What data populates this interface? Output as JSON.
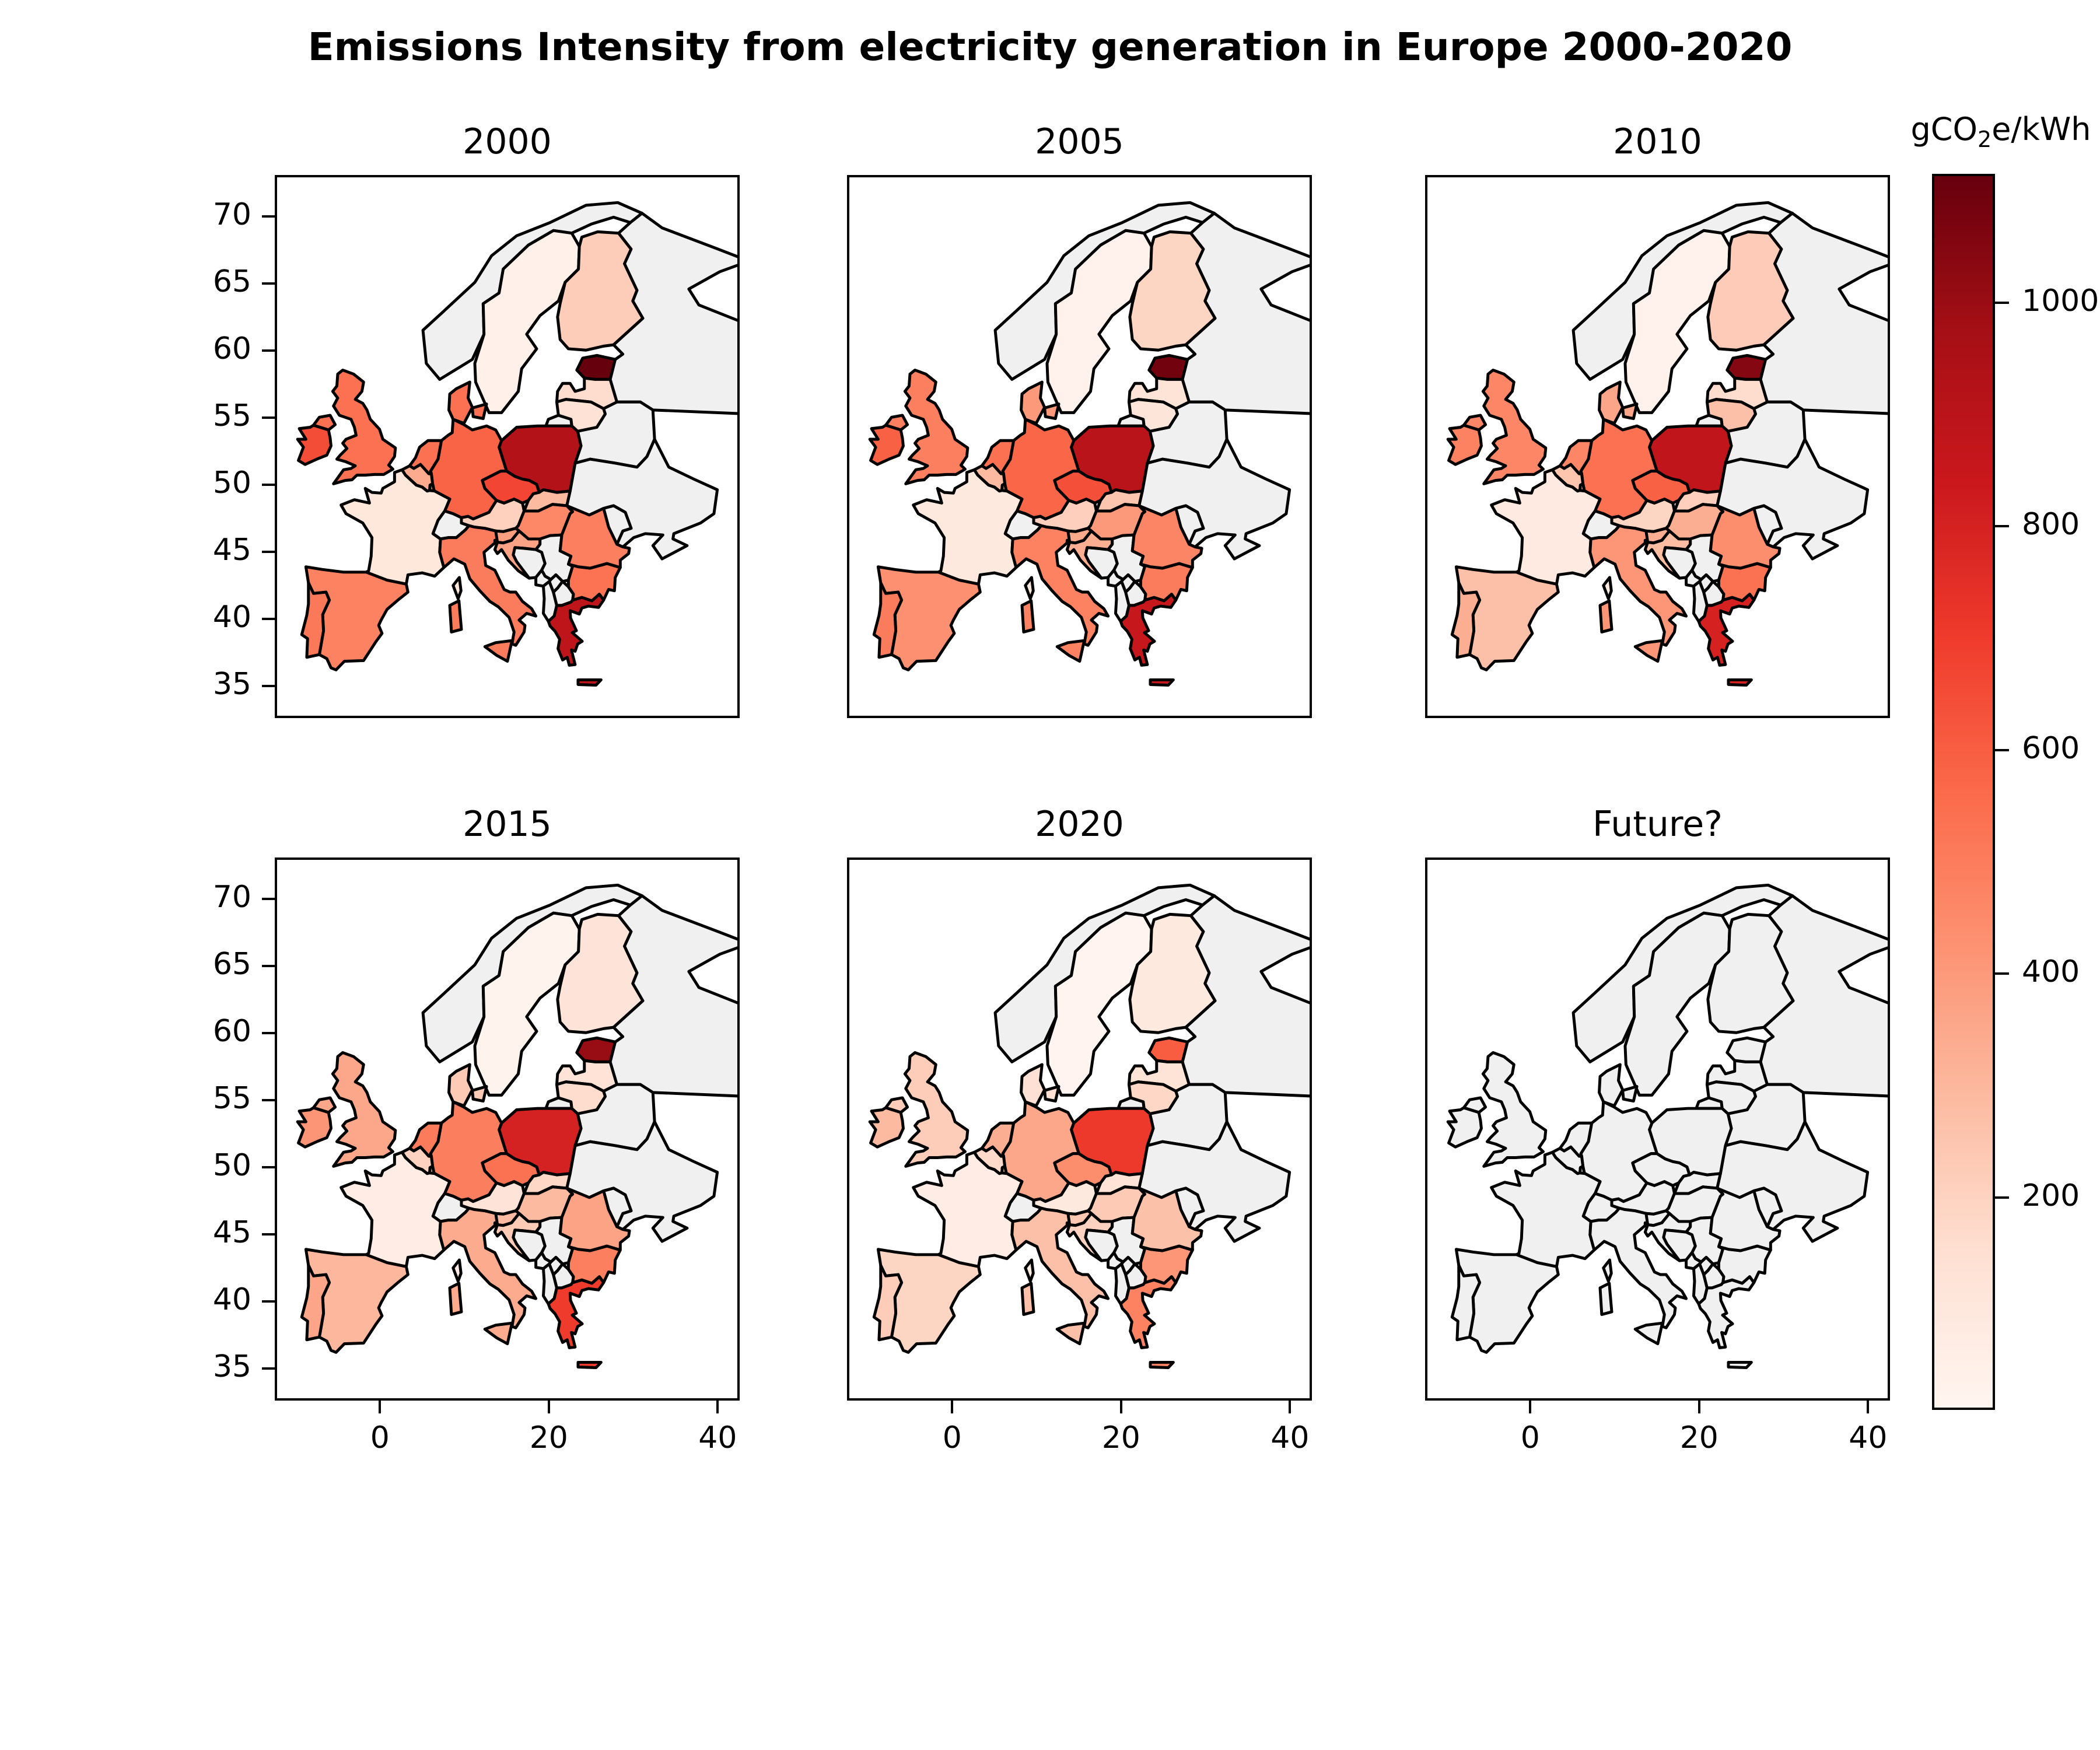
{
  "figure": {
    "title": "Emissions Intensity from electricity generation in Europe 2000-2020",
    "background": "#ffffff"
  },
  "axes": {
    "x_ticks": [
      0,
      20,
      40
    ],
    "y_ticks": [
      35,
      40,
      45,
      50,
      55,
      60,
      65,
      70
    ],
    "x_range": [
      -12.45,
      42.6
    ],
    "y_range": [
      32.6,
      73.1
    ]
  },
  "colorbar": {
    "label": "gCO2e/kWh",
    "label_prefix": "gCO",
    "label_sub": "2",
    "label_suffix": "e/kWh",
    "ticks": [
      200,
      400,
      600,
      800,
      1000
    ]
  },
  "chart_data": {
    "type": "choropleth",
    "title": "Emissions Intensity from electricity generation in Europe 2000-2020",
    "unit": "gCO2e/kWh",
    "colormap": "Reds",
    "colormap_anchors": [
      "#fff5f0",
      "#fee0d2",
      "#fcbba1",
      "#fc9272",
      "#fb6a4a",
      "#ef3b2c",
      "#cb181d",
      "#a50f15",
      "#67000d"
    ],
    "no_data_color": "#f0f0f0",
    "border_color": "#000000",
    "vmin": 10,
    "vmax": 1115,
    "years": [
      "2000",
      "2005",
      "2010",
      "2015",
      "2020"
    ],
    "panels": [
      {
        "label": "2000",
        "year": "2000"
      },
      {
        "label": "2005",
        "year": "2005"
      },
      {
        "label": "2010",
        "year": "2010"
      },
      {
        "label": "2015",
        "year": "2015"
      },
      {
        "label": "2020",
        "year": "2020"
      },
      {
        "label": "Future?",
        "year": null
      }
    ],
    "no_data_countries": [
      "Norway",
      "Switzerland",
      "Russia",
      "Belarus",
      "Ukraine",
      "Moldova",
      "Bosnia and Herzegovina",
      "Serbia",
      "Montenegro",
      "Kosovo",
      "Albania",
      "North Macedonia"
    ],
    "values": {
      "Estonia": {
        "2000": 1115,
        "2005": 1090,
        "2010": 1050,
        "2015": 1005,
        "2020": 600
      },
      "Poland": {
        "2000": 930,
        "2005": 905,
        "2010": 880,
        "2015": 805,
        "2020": 710
      },
      "Greece": {
        "2000": 890,
        "2005": 860,
        "2010": 800,
        "2015": 700,
        "2020": 480
      },
      "Czechia": {
        "2000": 670,
        "2005": 640,
        "2010": 590,
        "2015": 535,
        "2020": 440
      },
      "Ireland": {
        "2000": 650,
        "2005": 590,
        "2010": 480,
        "2015": 415,
        "2020": 290
      },
      "Germany": {
        "2000": 580,
        "2005": 570,
        "2010": 540,
        "2015": 495,
        "2020": 355
      },
      "Netherlands": {
        "2000": 540,
        "2005": 540,
        "2010": 465,
        "2015": 505,
        "2020": 330
      },
      "Denmark": {
        "2000": 540,
        "2005": 400,
        "2010": 360,
        "2015": 230,
        "2020": 140
      },
      "United Kingdom": {
        "2000": 540,
        "2005": 490,
        "2010": 465,
        "2015": 355,
        "2020": 220
      },
      "Bulgaria": {
        "2000": 530,
        "2005": 500,
        "2010": 535,
        "2015": 490,
        "2020": 410
      },
      "Portugal": {
        "2000": 510,
        "2005": 500,
        "2010": 330,
        "2015": 360,
        "2020": 220
      },
      "Italy": {
        "2000": 500,
        "2005": 480,
        "2010": 410,
        "2015": 340,
        "2020": 270
      },
      "Romania": {
        "2000": 490,
        "2005": 470,
        "2010": 440,
        "2015": 370,
        "2020": 265
      },
      "Spain": {
        "2000": 480,
        "2005": 430,
        "2010": 270,
        "2015": 300,
        "2020": 190
      },
      "Hungary": {
        "2000": 460,
        "2005": 400,
        "2010": 330,
        "2015": 290,
        "2020": 230
      },
      "Luxembourg": {
        "2000": 400,
        "2005": 380,
        "2010": 350,
        "2015": 220,
        "2020": 150
      },
      "Slovenia": {
        "2000": 380,
        "2005": 350,
        "2010": 330,
        "2015": 290,
        "2020": 240
      },
      "Croatia": {
        "2000": 370,
        "2005": 330,
        "2010": 280,
        "2015": 230,
        "2020": 200
      },
      "Belgium": {
        "2000": 340,
        "2005": 290,
        "2010": 250,
        "2015": 200,
        "2020": 170
      },
      "Slovakia": {
        "2000": 290,
        "2005": 250,
        "2010": 210,
        "2015": 180,
        "2020": 130
      },
      "Finland": {
        "2000": 220,
        "2005": 190,
        "2010": 225,
        "2015": 120,
        "2020": 90
      },
      "Austria": {
        "2000": 205,
        "2005": 210,
        "2010": 190,
        "2015": 120,
        "2020": 90
      },
      "Latvia": {
        "2000": 160,
        "2005": 125,
        "2010": 160,
        "2015": 130,
        "2020": 125
      },
      "Lithuania": {
        "2000": 135,
        "2005": 115,
        "2010": 270,
        "2015": 160,
        "2020": 180
      },
      "France": {
        "2000": 105,
        "2005": 90,
        "2010": 85,
        "2015": 60,
        "2020": 60
      },
      "Sweden": {
        "2000": 40,
        "2005": 30,
        "2010": 30,
        "2015": 20,
        "2020": 15
      }
    }
  }
}
